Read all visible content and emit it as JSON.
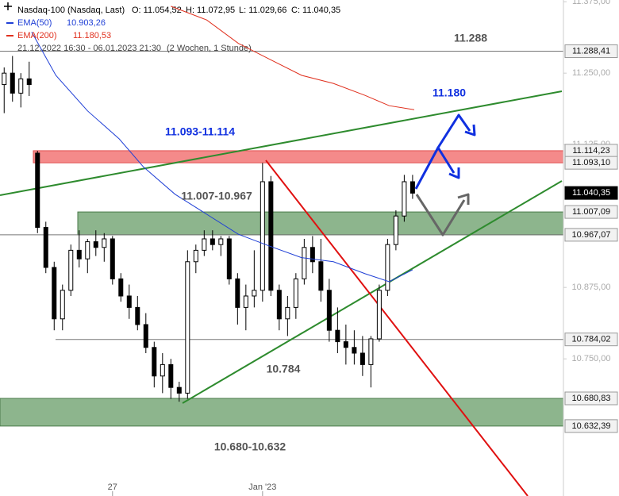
{
  "legend": {
    "instrument": "Nasdaq-100 (Nasdaq, Last)",
    "ohlc": [
      "O: 11.054,52",
      "H: 11.072,95",
      "L: 11.029,66",
      "C: 11.040,35"
    ],
    "range": "21.12.2022 16:30 - 06.01.2023 21:30",
    "interval": "(2 Wochen, 1 Stunde)"
  },
  "chart_data": {
    "type": "candlestick",
    "candles": [
      [
        11230,
        11260,
        11180,
        11250
      ],
      [
        11250,
        11280,
        11200,
        11215
      ],
      [
        11215,
        11250,
        11190,
        11240
      ],
      [
        11240,
        11270,
        11210,
        11230
      ],
      [
        11110,
        11114,
        10970,
        10980
      ],
      [
        10980,
        10990,
        10900,
        10910
      ],
      [
        10910,
        10920,
        10800,
        10820
      ],
      [
        10820,
        10880,
        10800,
        10870
      ],
      [
        10870,
        10950,
        10860,
        10940
      ],
      [
        10940,
        10975,
        10910,
        10925
      ],
      [
        10925,
        10960,
        10900,
        10955
      ],
      [
        10955,
        10975,
        10930,
        10945
      ],
      [
        10945,
        10970,
        10920,
        10960
      ],
      [
        10960,
        10965,
        10880,
        10890
      ],
      [
        10890,
        10900,
        10850,
        10860
      ],
      [
        10860,
        10880,
        10820,
        10840
      ],
      [
        10840,
        10860,
        10800,
        10810
      ],
      [
        10810,
        10830,
        10760,
        10770
      ],
      [
        10770,
        10780,
        10700,
        10720
      ],
      [
        10720,
        10760,
        10690,
        10740
      ],
      [
        10740,
        10750,
        10680,
        10700
      ],
      [
        10700,
        10710,
        10675,
        10690
      ],
      [
        10690,
        10940,
        10680,
        10920
      ],
      [
        10920,
        10950,
        10900,
        10940
      ],
      [
        10940,
        10975,
        10930,
        10960
      ],
      [
        10960,
        10975,
        10940,
        10950
      ],
      [
        10950,
        10965,
        10930,
        10960
      ],
      [
        10960,
        10965,
        10880,
        10890
      ],
      [
        10890,
        10900,
        10810,
        10840
      ],
      [
        10840,
        10880,
        10800,
        10860
      ],
      [
        10860,
        10940,
        10840,
        10870
      ],
      [
        10870,
        11093,
        10850,
        11060
      ],
      [
        11060,
        11070,
        10860,
        10870
      ],
      [
        10870,
        10880,
        10800,
        10820
      ],
      [
        10820,
        10860,
        10790,
        10840
      ],
      [
        10840,
        10900,
        10820,
        10890
      ],
      [
        10890,
        10960,
        10880,
        10945
      ],
      [
        10945,
        10965,
        10900,
        10920
      ],
      [
        10920,
        10960,
        10850,
        10870
      ],
      [
        10870,
        10890,
        10780,
        10800
      ],
      [
        10800,
        10840,
        10760,
        10780
      ],
      [
        10780,
        10810,
        10740,
        10770
      ],
      [
        10770,
        10800,
        10740,
        10760
      ],
      [
        10760,
        10790,
        10720,
        10740
      ],
      [
        10740,
        10790,
        10700,
        10785
      ],
      [
        10785,
        10880,
        10780,
        10870
      ],
      [
        10870,
        10960,
        10860,
        10950
      ],
      [
        10950,
        11010,
        10940,
        11000
      ],
      [
        11000,
        11072,
        10990,
        11060
      ],
      [
        11060,
        11072,
        11030,
        11040
      ]
    ],
    "series": [
      {
        "name": "EMA(50)",
        "value_label": "10.903,26",
        "color": "#1f3fd6",
        "x": [
          3.3,
          6.2,
          10,
          13.8,
          16.7,
          20.5,
          24.3,
          28.1,
          31.9,
          35.7,
          39.5,
          43.3,
          46.2,
          49
        ],
        "values": [
          11322,
          11246,
          11184,
          11135,
          11086,
          11038,
          11003,
          10968,
          10947,
          10927,
          10920,
          10899,
          10885,
          10906
        ]
      },
      {
        "name": "EMA(200)",
        "value_label": "11.180,53",
        "color": "#e0301e",
        "x": [
          20,
          24.3,
          28.1,
          31.9,
          35.7,
          39.5,
          43.3,
          46.2,
          49.2
        ],
        "values": [
          11367,
          11343,
          11302,
          11274,
          11246,
          11232,
          11211,
          11193,
          11186
        ]
      }
    ],
    "xlim": [
      -0.5,
      67.1
    ],
    "ylim": [
      10510,
      11378
    ],
    "xticks": [
      {
        "value": 13,
        "label": "27"
      },
      {
        "value": 31,
        "label": "Jan '23"
      }
    ],
    "yticks": [
      {
        "value": 11375,
        "label": "11.375,00"
      },
      {
        "value": 11250,
        "label": "11.250,00"
      },
      {
        "value": 11125,
        "label": "11.125,00"
      },
      {
        "value": 10875,
        "label": "10.875,00"
      },
      {
        "value": 10750,
        "label": "10.750,00"
      }
    ],
    "levels": [
      {
        "value": 11288.41,
        "label": "11.288,41"
      },
      {
        "value": 11114.23,
        "label": "11.114,23"
      },
      {
        "value": 11093.1,
        "label": "11.093,10"
      },
      {
        "value": 11040.35,
        "label": "11.040,35"
      },
      {
        "value": 11007.09,
        "label": "11.007,09"
      },
      {
        "value": 10967.07,
        "label": "10.967,07"
      },
      {
        "value": 10784.02,
        "label": "10.784,02"
      },
      {
        "value": 10680.83,
        "label": "10.680,83"
      },
      {
        "value": 10632.39,
        "label": "10.632,39"
      }
    ],
    "annotations": [
      "11.288",
      "11.180",
      "11.093-11.114",
      "11.007-10.967",
      "10.784",
      "10.680-10.632"
    ]
  }
}
